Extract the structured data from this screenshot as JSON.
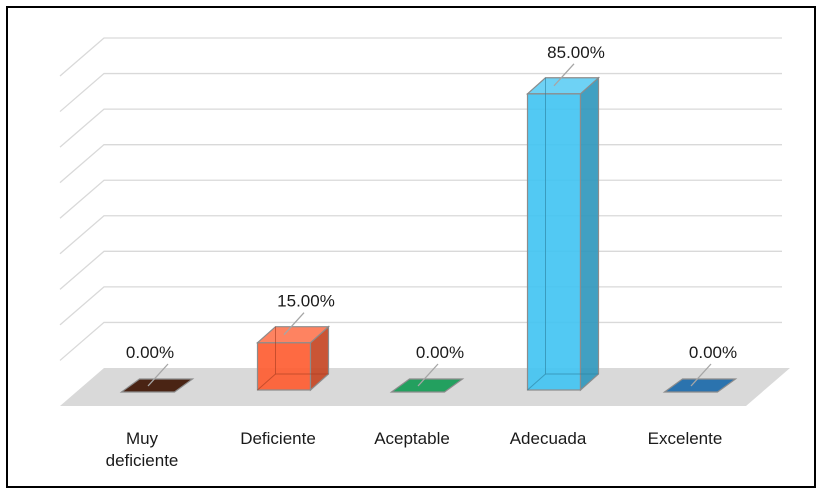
{
  "chart_data": {
    "type": "bar",
    "categories": [
      "Muy deficiente",
      "Deficiente",
      "Aceptable",
      "Adecuada",
      "Excelente"
    ],
    "category_lines": [
      [
        "Muy",
        "deficiente"
      ],
      [
        "Deficiente"
      ],
      [
        "Aceptable"
      ],
      [
        "Adecuada"
      ],
      [
        "Excelente"
      ]
    ],
    "values": [
      0.0,
      15.0,
      0.0,
      85.0,
      0.0
    ],
    "data_labels": [
      "0.00%",
      "15.00%",
      "0.00%",
      "85.00%",
      "0.00%"
    ],
    "ylim": [
      0,
      90
    ],
    "grid": true,
    "legend": "none",
    "colors": [
      "#4a2414",
      "#fe5a2e",
      "#23a05f",
      "#3fc3f2",
      "#2b73ae"
    ]
  }
}
